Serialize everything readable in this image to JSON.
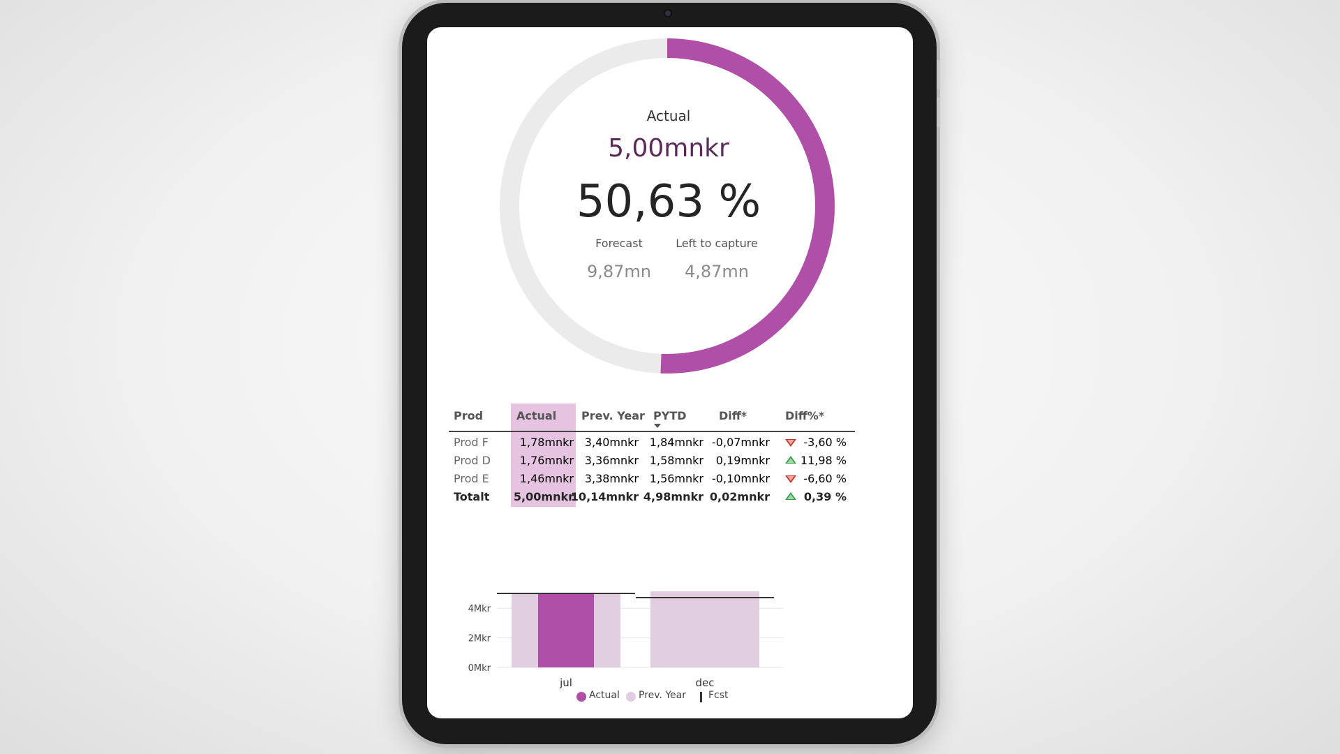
{
  "gauge": {
    "label": "Actual",
    "actual_value": "5,00mnkr",
    "percentage_text": "50,63 %",
    "percentage": 0.5063,
    "forecast_label": "Forecast",
    "forecast_value": "9,87mn",
    "left_label": "Left to capture",
    "left_value": "4,87mn",
    "color_fill": "#b04fa7",
    "color_track": "#ebebeb"
  },
  "table": {
    "headers": [
      "Prod",
      "Actual",
      "Prev. Year",
      "PYTD",
      "Diff*",
      "Diff%*"
    ],
    "sorted_column": "PYTD",
    "rows": [
      {
        "prod": "Prod F",
        "actual": "1,78mnkr",
        "prev": "3,40mnkr",
        "pytd": "1,84mnkr",
        "diff": "-0,07mnkr",
        "trend": "down",
        "diff_pct": "-3,60 %"
      },
      {
        "prod": "Prod D",
        "actual": "1,76mnkr",
        "prev": "3,36mnkr",
        "pytd": "1,58mnkr",
        "diff": "0,19mnkr",
        "trend": "up",
        "diff_pct": "11,98 %"
      },
      {
        "prod": "Prod E",
        "actual": "1,46mnkr",
        "prev": "3,38mnkr",
        "pytd": "1,56mnkr",
        "diff": "-0,10mnkr",
        "trend": "down",
        "diff_pct": "-6,60 %"
      }
    ],
    "total": {
      "prod": "Totalt",
      "actual": "5,00mnkr",
      "prev": "10,14mnkr",
      "pytd": "4,98mnkr",
      "diff": "0,02mnkr",
      "trend": "up",
      "diff_pct": "0,39 %"
    },
    "highlight_color": "#e6c3e1"
  },
  "chart_data": {
    "type": "bar",
    "categories": [
      "jul",
      "dec"
    ],
    "series": [
      {
        "name": "Actual",
        "values": [
          5.0,
          null
        ],
        "color": "#b04fa7"
      },
      {
        "name": "Prev. Year",
        "values": [
          5.0,
          5.14
        ],
        "color": "#e1cde0"
      },
      {
        "name": "Fcst",
        "values": [
          4.87,
          5.0
        ],
        "color": "#333333"
      }
    ],
    "ytick_labels": [
      "0Mkr",
      "2Mkr",
      "4Mkr"
    ],
    "yticks": [
      0,
      2,
      4
    ],
    "ylim": [
      0,
      5.5
    ],
    "legend": [
      "Actual",
      "Prev. Year",
      "Fcst"
    ],
    "legend_position": "bottom",
    "grid": true
  }
}
